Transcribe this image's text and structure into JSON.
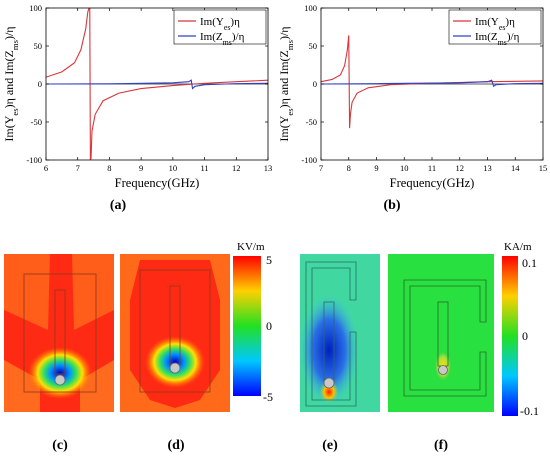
{
  "panel_labels": {
    "a": "(a)",
    "b": "(b)",
    "c": "(c)",
    "d": "(d)",
    "e": "(e)",
    "f": "(f)"
  },
  "colorbar_e": {
    "unit": "KV/m",
    "ticks": [
      "5",
      "0",
      "-5"
    ]
  },
  "colorbar_h": {
    "unit": "KA/m",
    "ticks": [
      "0.1",
      "0",
      "-0.1"
    ]
  },
  "colors": {
    "ye": "#d9363b",
    "zm": "#3040c8"
  },
  "chart_data": [
    {
      "id": "a",
      "type": "line",
      "xlabel": "Frequency(GHz)",
      "ylabel": "Im(Y_es)η and Im(Z_ms)/η",
      "xlim": [
        6,
        13
      ],
      "ylim": [
        -100,
        100
      ],
      "xticks": [
        6,
        7,
        8,
        9,
        10,
        11,
        12,
        13
      ],
      "yticks": [
        -100,
        -50,
        0,
        50,
        100
      ],
      "grid": false,
      "legend": "top-right",
      "series": [
        {
          "name": "Im(Y_es)η",
          "x": [
            6.0,
            6.5,
            6.9,
            7.1,
            7.25,
            7.32,
            7.36,
            7.38,
            7.4,
            7.42,
            7.45,
            7.55,
            7.8,
            8.3,
            9.0,
            10.0,
            11.0,
            12.0,
            13.0
          ],
          "y": [
            9,
            16,
            28,
            45,
            72,
            95,
            100,
            100,
            -100,
            -98,
            -62,
            -40,
            -22,
            -12,
            -6,
            -2,
            1,
            3,
            5
          ]
        },
        {
          "name": "Im(Z_ms)/η",
          "x": [
            6.0,
            8.0,
            10.0,
            10.5,
            10.58,
            10.62,
            10.7,
            11.0,
            12.0,
            13.0
          ],
          "y": [
            0,
            0.3,
            1.5,
            3,
            5,
            -6,
            -3,
            -1,
            0.5,
            1
          ]
        }
      ]
    },
    {
      "id": "b",
      "type": "line",
      "xlabel": "Frequency(GHz)",
      "ylabel": "Im(Y_es)η and Im(Z_ms)/η",
      "xlim": [
        7,
        15
      ],
      "ylim": [
        -100,
        100
      ],
      "xticks": [
        7,
        8,
        9,
        10,
        11,
        12,
        13,
        14,
        15
      ],
      "yticks": [
        -100,
        -50,
        0,
        50,
        100
      ],
      "grid": false,
      "legend": "top-right",
      "series": [
        {
          "name": "Im(Y_es)η",
          "x": [
            7.0,
            7.4,
            7.7,
            7.85,
            7.95,
            8.0,
            8.03,
            8.06,
            8.12,
            8.3,
            8.7,
            9.5,
            11.0,
            13.0,
            15.0
          ],
          "y": [
            3,
            6,
            12,
            24,
            45,
            64,
            -58,
            -40,
            -24,
            -12,
            -5,
            -1,
            1,
            3,
            4
          ]
        },
        {
          "name": "Im(Z_ms)/η",
          "x": [
            7.0,
            9.0,
            12.0,
            13.0,
            13.15,
            13.22,
            13.3,
            14.0,
            15.0
          ],
          "y": [
            0,
            0.5,
            1.5,
            3,
            5,
            -3,
            -1,
            0.5,
            1
          ]
        }
      ]
    }
  ]
}
